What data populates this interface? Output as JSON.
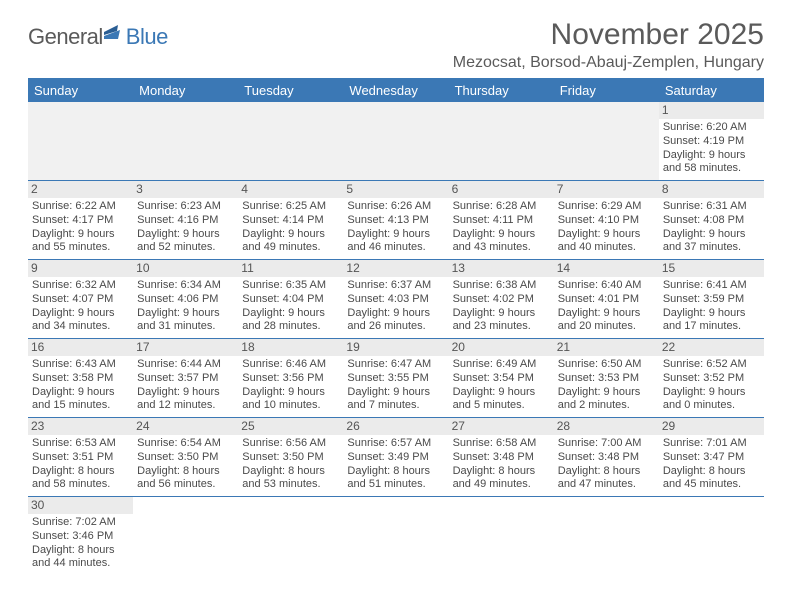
{
  "logo": {
    "part1": "General",
    "part2": "Blue"
  },
  "title": "November 2025",
  "subtitle": "Mezocsat, Borsod-Abauj-Zemplen, Hungary",
  "colors": {
    "header_bg": "#3b78b5",
    "header_text": "#ffffff",
    "row_divider": "#3b78b5",
    "daynum_bg": "#ebebeb",
    "empty_bg": "#f1f1f1",
    "text": "#4a4a4a",
    "title_text": "#5a5a5a"
  },
  "dow": [
    "Sunday",
    "Monday",
    "Tuesday",
    "Wednesday",
    "Thursday",
    "Friday",
    "Saturday"
  ],
  "weeks": [
    [
      null,
      null,
      null,
      null,
      null,
      null,
      {
        "n": "1",
        "sr": "Sunrise: 6:20 AM",
        "ss": "Sunset: 4:19 PM",
        "d1": "Daylight: 9 hours",
        "d2": "and 58 minutes."
      }
    ],
    [
      {
        "n": "2",
        "sr": "Sunrise: 6:22 AM",
        "ss": "Sunset: 4:17 PM",
        "d1": "Daylight: 9 hours",
        "d2": "and 55 minutes."
      },
      {
        "n": "3",
        "sr": "Sunrise: 6:23 AM",
        "ss": "Sunset: 4:16 PM",
        "d1": "Daylight: 9 hours",
        "d2": "and 52 minutes."
      },
      {
        "n": "4",
        "sr": "Sunrise: 6:25 AM",
        "ss": "Sunset: 4:14 PM",
        "d1": "Daylight: 9 hours",
        "d2": "and 49 minutes."
      },
      {
        "n": "5",
        "sr": "Sunrise: 6:26 AM",
        "ss": "Sunset: 4:13 PM",
        "d1": "Daylight: 9 hours",
        "d2": "and 46 minutes."
      },
      {
        "n": "6",
        "sr": "Sunrise: 6:28 AM",
        "ss": "Sunset: 4:11 PM",
        "d1": "Daylight: 9 hours",
        "d2": "and 43 minutes."
      },
      {
        "n": "7",
        "sr": "Sunrise: 6:29 AM",
        "ss": "Sunset: 4:10 PM",
        "d1": "Daylight: 9 hours",
        "d2": "and 40 minutes."
      },
      {
        "n": "8",
        "sr": "Sunrise: 6:31 AM",
        "ss": "Sunset: 4:08 PM",
        "d1": "Daylight: 9 hours",
        "d2": "and 37 minutes."
      }
    ],
    [
      {
        "n": "9",
        "sr": "Sunrise: 6:32 AM",
        "ss": "Sunset: 4:07 PM",
        "d1": "Daylight: 9 hours",
        "d2": "and 34 minutes."
      },
      {
        "n": "10",
        "sr": "Sunrise: 6:34 AM",
        "ss": "Sunset: 4:06 PM",
        "d1": "Daylight: 9 hours",
        "d2": "and 31 minutes."
      },
      {
        "n": "11",
        "sr": "Sunrise: 6:35 AM",
        "ss": "Sunset: 4:04 PM",
        "d1": "Daylight: 9 hours",
        "d2": "and 28 minutes."
      },
      {
        "n": "12",
        "sr": "Sunrise: 6:37 AM",
        "ss": "Sunset: 4:03 PM",
        "d1": "Daylight: 9 hours",
        "d2": "and 26 minutes."
      },
      {
        "n": "13",
        "sr": "Sunrise: 6:38 AM",
        "ss": "Sunset: 4:02 PM",
        "d1": "Daylight: 9 hours",
        "d2": "and 23 minutes."
      },
      {
        "n": "14",
        "sr": "Sunrise: 6:40 AM",
        "ss": "Sunset: 4:01 PM",
        "d1": "Daylight: 9 hours",
        "d2": "and 20 minutes."
      },
      {
        "n": "15",
        "sr": "Sunrise: 6:41 AM",
        "ss": "Sunset: 3:59 PM",
        "d1": "Daylight: 9 hours",
        "d2": "and 17 minutes."
      }
    ],
    [
      {
        "n": "16",
        "sr": "Sunrise: 6:43 AM",
        "ss": "Sunset: 3:58 PM",
        "d1": "Daylight: 9 hours",
        "d2": "and 15 minutes."
      },
      {
        "n": "17",
        "sr": "Sunrise: 6:44 AM",
        "ss": "Sunset: 3:57 PM",
        "d1": "Daylight: 9 hours",
        "d2": "and 12 minutes."
      },
      {
        "n": "18",
        "sr": "Sunrise: 6:46 AM",
        "ss": "Sunset: 3:56 PM",
        "d1": "Daylight: 9 hours",
        "d2": "and 10 minutes."
      },
      {
        "n": "19",
        "sr": "Sunrise: 6:47 AM",
        "ss": "Sunset: 3:55 PM",
        "d1": "Daylight: 9 hours",
        "d2": "and 7 minutes."
      },
      {
        "n": "20",
        "sr": "Sunrise: 6:49 AM",
        "ss": "Sunset: 3:54 PM",
        "d1": "Daylight: 9 hours",
        "d2": "and 5 minutes."
      },
      {
        "n": "21",
        "sr": "Sunrise: 6:50 AM",
        "ss": "Sunset: 3:53 PM",
        "d1": "Daylight: 9 hours",
        "d2": "and 2 minutes."
      },
      {
        "n": "22",
        "sr": "Sunrise: 6:52 AM",
        "ss": "Sunset: 3:52 PM",
        "d1": "Daylight: 9 hours",
        "d2": "and 0 minutes."
      }
    ],
    [
      {
        "n": "23",
        "sr": "Sunrise: 6:53 AM",
        "ss": "Sunset: 3:51 PM",
        "d1": "Daylight: 8 hours",
        "d2": "and 58 minutes."
      },
      {
        "n": "24",
        "sr": "Sunrise: 6:54 AM",
        "ss": "Sunset: 3:50 PM",
        "d1": "Daylight: 8 hours",
        "d2": "and 56 minutes."
      },
      {
        "n": "25",
        "sr": "Sunrise: 6:56 AM",
        "ss": "Sunset: 3:50 PM",
        "d1": "Daylight: 8 hours",
        "d2": "and 53 minutes."
      },
      {
        "n": "26",
        "sr": "Sunrise: 6:57 AM",
        "ss": "Sunset: 3:49 PM",
        "d1": "Daylight: 8 hours",
        "d2": "and 51 minutes."
      },
      {
        "n": "27",
        "sr": "Sunrise: 6:58 AM",
        "ss": "Sunset: 3:48 PM",
        "d1": "Daylight: 8 hours",
        "d2": "and 49 minutes."
      },
      {
        "n": "28",
        "sr": "Sunrise: 7:00 AM",
        "ss": "Sunset: 3:48 PM",
        "d1": "Daylight: 8 hours",
        "d2": "and 47 minutes."
      },
      {
        "n": "29",
        "sr": "Sunrise: 7:01 AM",
        "ss": "Sunset: 3:47 PM",
        "d1": "Daylight: 8 hours",
        "d2": "and 45 minutes."
      }
    ],
    [
      {
        "n": "30",
        "sr": "Sunrise: 7:02 AM",
        "ss": "Sunset: 3:46 PM",
        "d1": "Daylight: 8 hours",
        "d2": "and 44 minutes."
      },
      null,
      null,
      null,
      null,
      null,
      null
    ]
  ]
}
